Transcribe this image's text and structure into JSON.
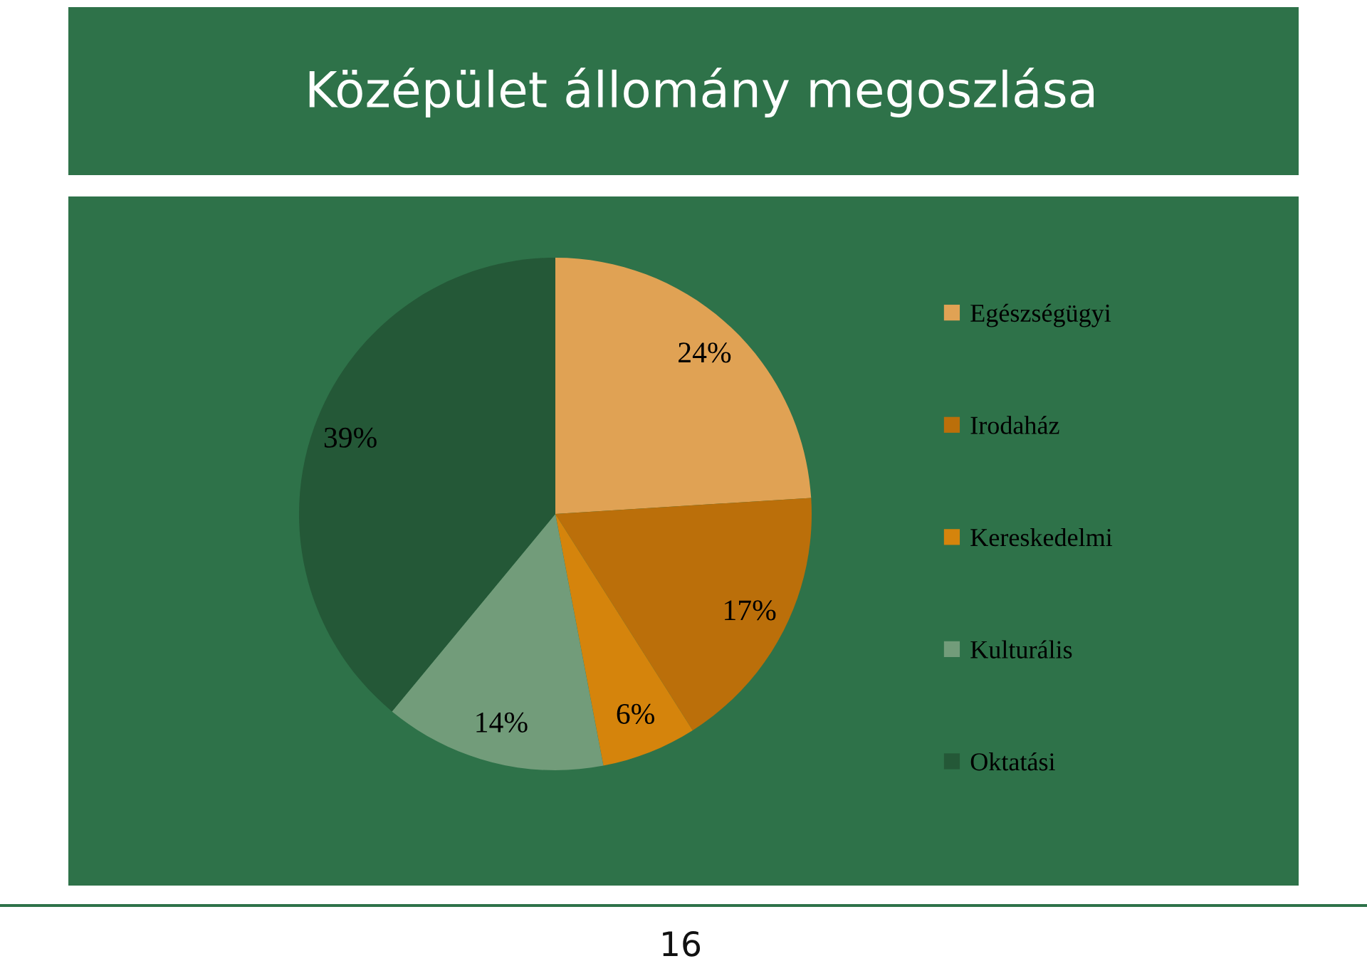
{
  "chart_data": {
    "type": "pie",
    "title": "Középület állomány megoszlása",
    "categories": [
      "Egészségügyi",
      "Irodaház",
      "Kereskedelmi",
      "Kulturális",
      "Oktatási"
    ],
    "values": [
      24,
      17,
      6,
      14,
      39
    ],
    "colors": [
      "#e0a254",
      "#bb6f0a",
      "#d5840c",
      "#729c7a",
      "#245837"
    ],
    "value_labels": [
      "24%",
      "17%",
      "6%",
      "14%",
      "39%"
    ],
    "legend": "right",
    "annotations": [
      "16"
    ]
  }
}
